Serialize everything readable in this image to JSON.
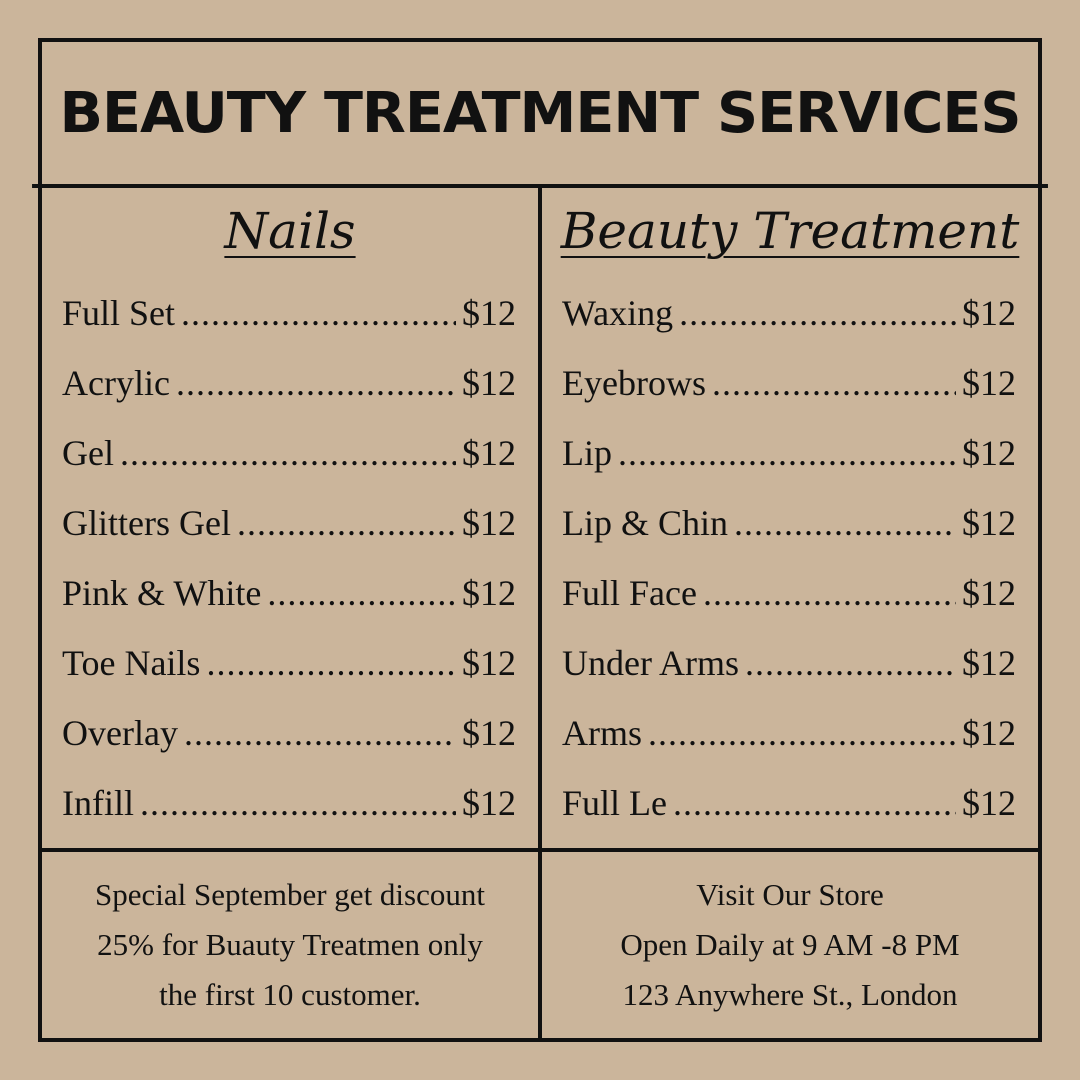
{
  "title": "BEAUTY TREATMENT SERVICES",
  "colors": {
    "background": "#cbb59b",
    "ink": "#111111"
  },
  "nails": {
    "heading": "Nails",
    "items": [
      {
        "name": "Full Set",
        "price": "$12"
      },
      {
        "name": "Acrylic",
        "price": "$12"
      },
      {
        "name": "Gel",
        "price": "$12"
      },
      {
        "name": "Glitters Gel",
        "price": "$12"
      },
      {
        "name": "Pink & White",
        "price": "$12"
      },
      {
        "name": "Toe Nails",
        "price": "$12"
      },
      {
        "name": "Overlay",
        "price": "$12"
      },
      {
        "name": "Infill",
        "price": "$12"
      }
    ]
  },
  "beauty": {
    "heading": "Beauty Treatment",
    "items": [
      {
        "name": "Waxing",
        "price": "$12"
      },
      {
        "name": "Eyebrows",
        "price": "$12"
      },
      {
        "name": "Lip",
        "price": "$12"
      },
      {
        "name": "Lip & Chin",
        "price": "$12"
      },
      {
        "name": "Full Face",
        "price": "$12"
      },
      {
        "name": "Under Arms",
        "price": "$12"
      },
      {
        "name": "Arms",
        "price": "$12"
      },
      {
        "name": "Full Le",
        "price": "$12"
      }
    ]
  },
  "promo": {
    "lines": [
      "Special September get discount",
      "25% for Buauty Treatmen only",
      "the first 10 customer."
    ]
  },
  "store": {
    "lines": [
      "Visit Our Store",
      "Open Daily at 9 AM -8 PM",
      "123 Anywhere St., London"
    ]
  }
}
